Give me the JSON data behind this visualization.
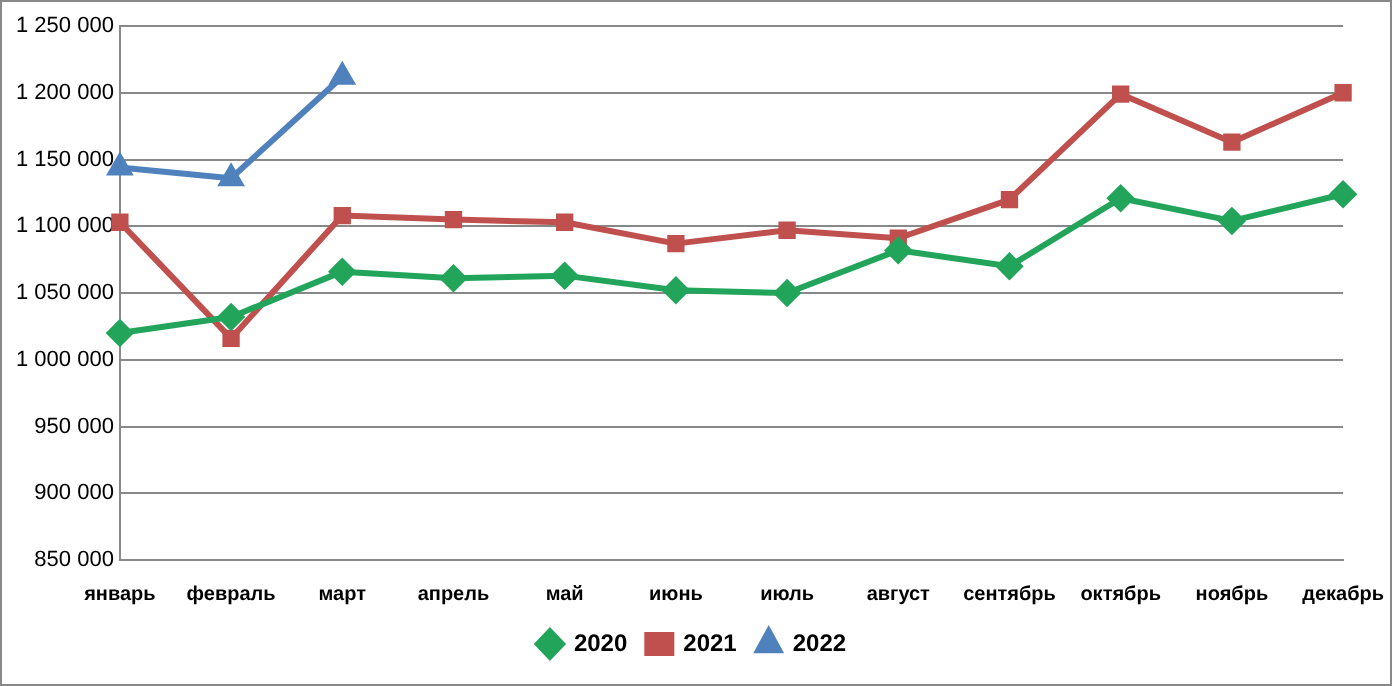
{
  "chart_data": {
    "type": "line",
    "categories": [
      "январь",
      "февраль",
      "март",
      "апрель",
      "май",
      "июнь",
      "июль",
      "август",
      "сентябрь",
      "октябрь",
      "ноябрь",
      "декабрь"
    ],
    "series": [
      {
        "name": "2020",
        "color": "#22a55a",
        "marker": "diamond",
        "values": [
          1020000,
          1032000,
          1066000,
          1061000,
          1063000,
          1052000,
          1050000,
          1082000,
          1070000,
          1121000,
          1104000,
          1124000
        ]
      },
      {
        "name": "2021",
        "color": "#c0504d",
        "marker": "square",
        "values": [
          1103000,
          1016000,
          1108000,
          1105000,
          1103000,
          1087000,
          1097000,
          1091000,
          1120000,
          1199000,
          1163000,
          1200000
        ]
      },
      {
        "name": "2022",
        "color": "#4f81bd",
        "marker": "triangle",
        "values": [
          1144000,
          1136000,
          1212000,
          null,
          null,
          null,
          null,
          null,
          null,
          null,
          null,
          null
        ]
      }
    ],
    "ylim": [
      850000,
      1250000
    ],
    "yticks": [
      {
        "value": 850000,
        "label": "850 000"
      },
      {
        "value": 900000,
        "label": "900 000"
      },
      {
        "value": 950000,
        "label": "950 000"
      },
      {
        "value": 1000000,
        "label": "1 000 000"
      },
      {
        "value": 1050000,
        "label": "1 050 000"
      },
      {
        "value": 1100000,
        "label": "1 100 000"
      },
      {
        "value": 1150000,
        "label": "1 150 000"
      },
      {
        "value": 1200000,
        "label": "1 200 000"
      },
      {
        "value": 1250000,
        "label": "1 250 000"
      }
    ],
    "grid": "y",
    "legend": "bottom",
    "line_style": "solid"
  }
}
